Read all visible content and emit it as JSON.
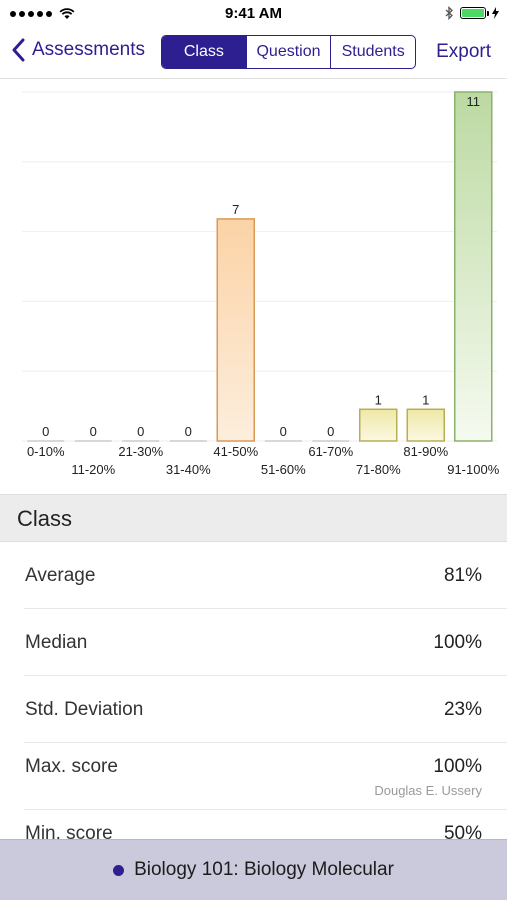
{
  "status_bar": {
    "time": "9:41 AM"
  },
  "nav": {
    "back_label": "Assessments",
    "segments": [
      "Class",
      "Question",
      "Students"
    ],
    "active_segment": "Class",
    "export_label": "Export"
  },
  "colors": {
    "accent": "#2d1f8f",
    "orange_top": "#f7c08a",
    "yellow_top": "#ece49a",
    "green_top": "#b9d89c"
  },
  "chart_data": {
    "type": "bar",
    "categories": [
      "0-10%",
      "11-20%",
      "21-30%",
      "31-40%",
      "41-50%",
      "51-60%",
      "61-70%",
      "71-80%",
      "81-90%",
      "91-100%"
    ],
    "values": [
      0,
      0,
      0,
      0,
      7,
      0,
      0,
      1,
      1,
      11
    ],
    "bar_colors": [
      "none",
      "none",
      "none",
      "none",
      "orange",
      "none",
      "none",
      "yellow",
      "yellow",
      "green"
    ],
    "ylim": [
      0,
      11
    ],
    "grid": true,
    "title": "",
    "xlabel": "",
    "ylabel": ""
  },
  "section": {
    "title": "Class"
  },
  "stats": [
    {
      "label": "Average",
      "value": "81%"
    },
    {
      "label": "Median",
      "value": "100%"
    },
    {
      "label": "Std. Deviation",
      "value": "23%"
    },
    {
      "label": "Max. score",
      "value": "100%",
      "sub": "Douglas E. Ussery"
    },
    {
      "label": "Min. score",
      "value": "50%"
    }
  ],
  "footer": {
    "course": "Biology 101: Biology Molecular"
  }
}
